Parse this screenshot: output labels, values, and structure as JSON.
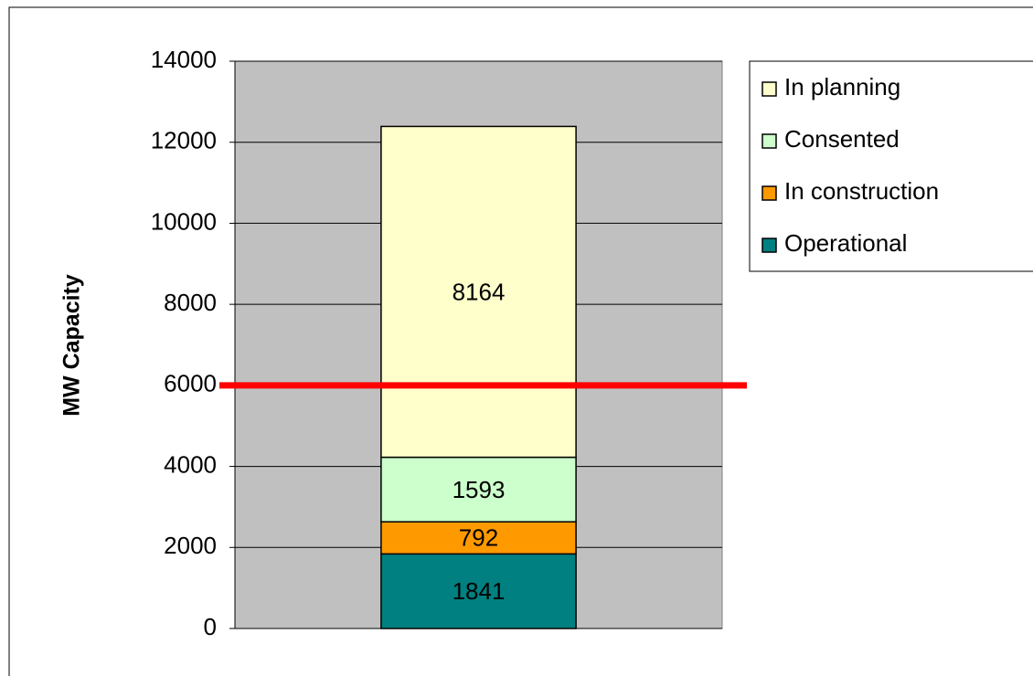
{
  "chart_data": {
    "type": "stacked_bar",
    "y_axis_label": "MW Capacity",
    "categories": [
      null
    ],
    "series": [
      {
        "name": "Operational",
        "color": "#008080",
        "values": [
          1841
        ]
      },
      {
        "name": "In construction",
        "color": "#ff9900",
        "values": [
          792
        ]
      },
      {
        "name": "Consented",
        "color": "#ccffcc",
        "values": [
          1593
        ]
      },
      {
        "name": "In planning",
        "color": "#ffffcc",
        "values": [
          8164
        ]
      }
    ],
    "ylim": [
      0,
      14000
    ],
    "yticks": [
      0,
      2000,
      4000,
      6000,
      8000,
      10000,
      12000,
      14000
    ],
    "grid": true,
    "plot_background": "#c0c0c0",
    "reference_line": {
      "value": 6000,
      "color": "#ff0000"
    },
    "legend": "right"
  }
}
